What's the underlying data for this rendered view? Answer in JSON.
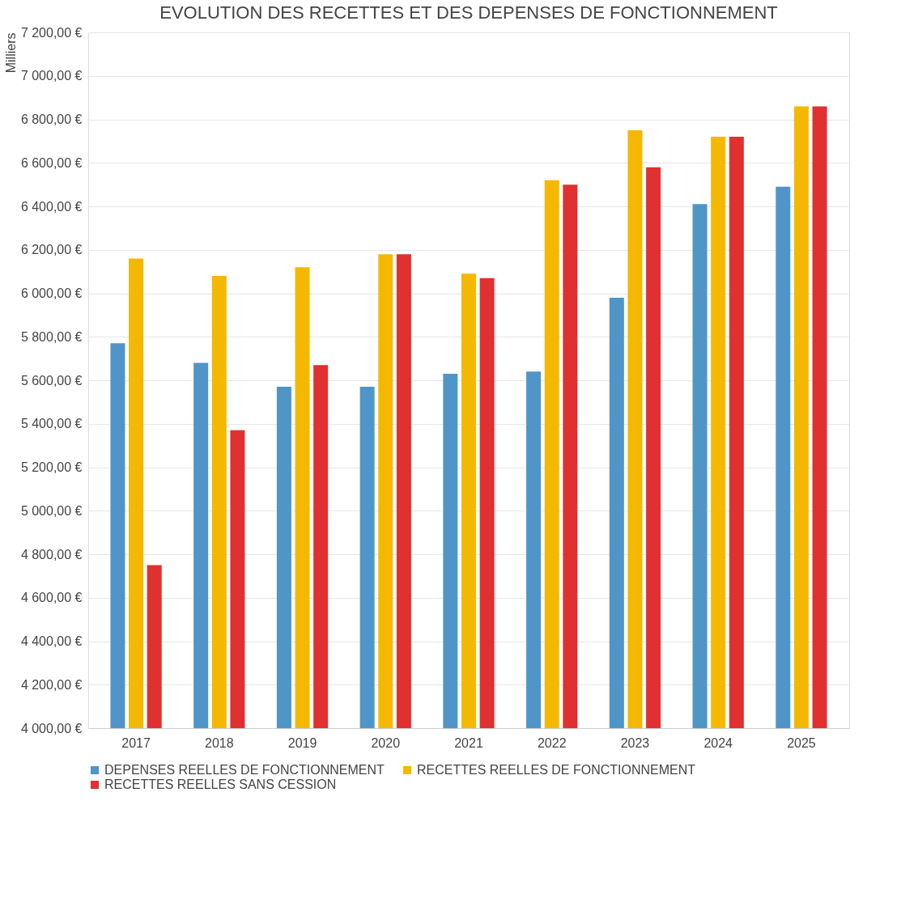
{
  "chart_data": {
    "type": "bar",
    "title": "EVOLUTION DES RECETTES ET DES DEPENSES DE FONCTIONNEMENT",
    "ylabel": "Milliers",
    "categories": [
      "2017",
      "2018",
      "2019",
      "2020",
      "2021",
      "2022",
      "2023",
      "2024",
      "2025"
    ],
    "series": [
      {
        "name": "DEPENSES REELLES DE FONCTIONNEMENT",
        "color": "#4f95c8",
        "values": [
          5770,
          5680,
          5570,
          5570,
          5630,
          5640,
          5980,
          6410,
          6490
        ]
      },
      {
        "name": "RECETTES REELLES DE FONCTIONNEMENT",
        "color": "#f5b800",
        "values": [
          6160,
          6080,
          6120,
          6180,
          6090,
          6520,
          6750,
          6720,
          6860
        ]
      },
      {
        "name": "RECETTES REELLES SANS CESSION",
        "color": "#e03030",
        "values": [
          4750,
          5370,
          5670,
          6180,
          6070,
          6500,
          6580,
          6720,
          6860
        ]
      }
    ],
    "ylim": [
      4000,
      7200
    ],
    "yticks": [
      {
        "value": 4000,
        "label": "4 000,00 €"
      },
      {
        "value": 4200,
        "label": "4 200,00 €"
      },
      {
        "value": 4400,
        "label": "4 400,00 €"
      },
      {
        "value": 4600,
        "label": "4 600,00 €"
      },
      {
        "value": 4800,
        "label": "4 800,00 €"
      },
      {
        "value": 5000,
        "label": "5 000,00 €"
      },
      {
        "value": 5200,
        "label": "5 200,00 €"
      },
      {
        "value": 5400,
        "label": "5 400,00 €"
      },
      {
        "value": 5600,
        "label": "5 600,00 €"
      },
      {
        "value": 5800,
        "label": "5 800,00 €"
      },
      {
        "value": 6000,
        "label": "6 000,00 €"
      },
      {
        "value": 6200,
        "label": "6 200,00 €"
      },
      {
        "value": 6400,
        "label": "6 400,00 €"
      },
      {
        "value": 6600,
        "label": "6 600,00 €"
      },
      {
        "value": 6800,
        "label": "6 800,00 €"
      },
      {
        "value": 7000,
        "label": "7 000,00 €"
      },
      {
        "value": 7200,
        "label": "7 200,00 €"
      }
    ],
    "grid": "y",
    "legend": "bottom"
  }
}
